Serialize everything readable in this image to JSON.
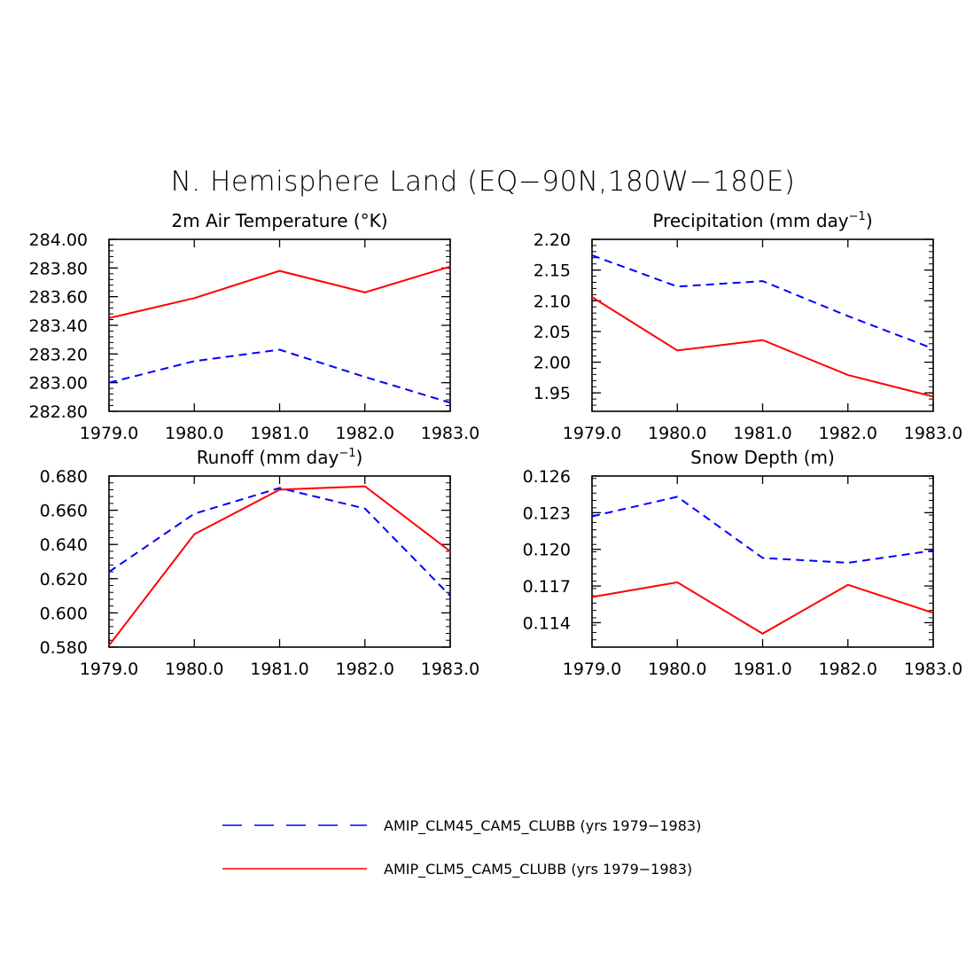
{
  "figure": {
    "title": "N. Hemisphere Land (EQ−90N,180W−180E)"
  },
  "legend": [
    {
      "name": "AMIP_CLM45_CAM5_CLUBB (yrs 1979−1983)",
      "color": "#0000ff",
      "dash": "dashed"
    },
    {
      "name": "AMIP_CLM5_CAM5_CLUBB (yrs 1979−1983)",
      "color": "#ff0000",
      "dash": "solid"
    }
  ],
  "chart_data": [
    {
      "type": "line",
      "title": "2m Air Temperature (°K)",
      "title_sup": "",
      "title_suffix": "",
      "x": [
        1979,
        1980,
        1981,
        1982,
        1983
      ],
      "xlim": [
        1979,
        1983
      ],
      "xticks": [
        "1979.0",
        "1980.0",
        "1981.0",
        "1982.0",
        "1983.0"
      ],
      "ylim": [
        282.8,
        284.0
      ],
      "yticks": [
        282.8,
        283.0,
        283.2,
        283.4,
        283.6,
        283.8,
        284.0
      ],
      "ytick_labels": [
        "282.80",
        "283.00",
        "283.20",
        "283.40",
        "283.60",
        "283.80",
        "284.00"
      ],
      "series": [
        {
          "name": "AMIP_CLM45_CAM5_CLUBB (yrs 1979−1983)",
          "values": [
            283.0,
            283.15,
            283.23,
            283.04,
            282.86
          ]
        },
        {
          "name": "AMIP_CLM5_CAM5_CLUBB (yrs 1979−1983)",
          "values": [
            283.45,
            283.59,
            283.78,
            283.63,
            283.81
          ]
        }
      ]
    },
    {
      "type": "line",
      "title": "Precipitation (mm day",
      "title_sup": "−1",
      "title_suffix": ")",
      "x": [
        1979,
        1980,
        1981,
        1982,
        1983
      ],
      "xlim": [
        1979,
        1983
      ],
      "xticks": [
        "1979.0",
        "1980.0",
        "1981.0",
        "1982.0",
        "1983.0"
      ],
      "ylim": [
        1.92,
        2.2
      ],
      "yticks": [
        1.95,
        2.0,
        2.05,
        2.1,
        2.15,
        2.2
      ],
      "ytick_labels": [
        "1.95",
        "2.00",
        "2.05",
        "2.10",
        "2.15",
        "2.20"
      ],
      "series": [
        {
          "name": "AMIP_CLM45_CAM5_CLUBB (yrs 1979−1983)",
          "values": [
            2.174,
            2.123,
            2.132,
            2.075,
            2.022
          ]
        },
        {
          "name": "AMIP_CLM5_CAM5_CLUBB (yrs 1979−1983)",
          "values": [
            2.106,
            2.019,
            2.036,
            1.979,
            1.944
          ]
        }
      ]
    },
    {
      "type": "line",
      "title": "Runoff (mm day",
      "title_sup": "−1",
      "title_suffix": ")",
      "x": [
        1979,
        1980,
        1981,
        1982,
        1983
      ],
      "xlim": [
        1979,
        1983
      ],
      "xticks": [
        "1979.0",
        "1980.0",
        "1981.0",
        "1982.0",
        "1983.0"
      ],
      "ylim": [
        0.58,
        0.68
      ],
      "yticks": [
        0.58,
        0.6,
        0.62,
        0.64,
        0.66,
        0.68
      ],
      "ytick_labels": [
        "0.580",
        "0.600",
        "0.620",
        "0.640",
        "0.660",
        "0.680"
      ],
      "series": [
        {
          "name": "AMIP_CLM45_CAM5_CLUBB (yrs 1979−1983)",
          "values": [
            0.624,
            0.658,
            0.673,
            0.661,
            0.61
          ]
        },
        {
          "name": "AMIP_CLM5_CAM5_CLUBB (yrs 1979−1983)",
          "values": [
            0.581,
            0.646,
            0.672,
            0.674,
            0.636
          ]
        }
      ]
    },
    {
      "type": "line",
      "title": "Snow Depth (m)",
      "title_sup": "",
      "title_suffix": "",
      "x": [
        1979,
        1980,
        1981,
        1982,
        1983
      ],
      "xlim": [
        1979,
        1983
      ],
      "xticks": [
        "1979.0",
        "1980.0",
        "1981.0",
        "1982.0",
        "1983.0"
      ],
      "ylim": [
        0.112,
        0.126
      ],
      "yticks": [
        0.114,
        0.117,
        0.12,
        0.123,
        0.126
      ],
      "ytick_labels": [
        "0.114",
        "0.117",
        "0.120",
        "0.123",
        "0.126"
      ],
      "series": [
        {
          "name": "AMIP_CLM45_CAM5_CLUBB (yrs 1979−1983)",
          "values": [
            0.1227,
            0.1243,
            0.1193,
            0.1189,
            0.1199
          ]
        },
        {
          "name": "AMIP_CLM5_CAM5_CLUBB (yrs 1979−1983)",
          "values": [
            0.1161,
            0.1173,
            0.1131,
            0.1171,
            0.1148
          ]
        }
      ]
    }
  ]
}
